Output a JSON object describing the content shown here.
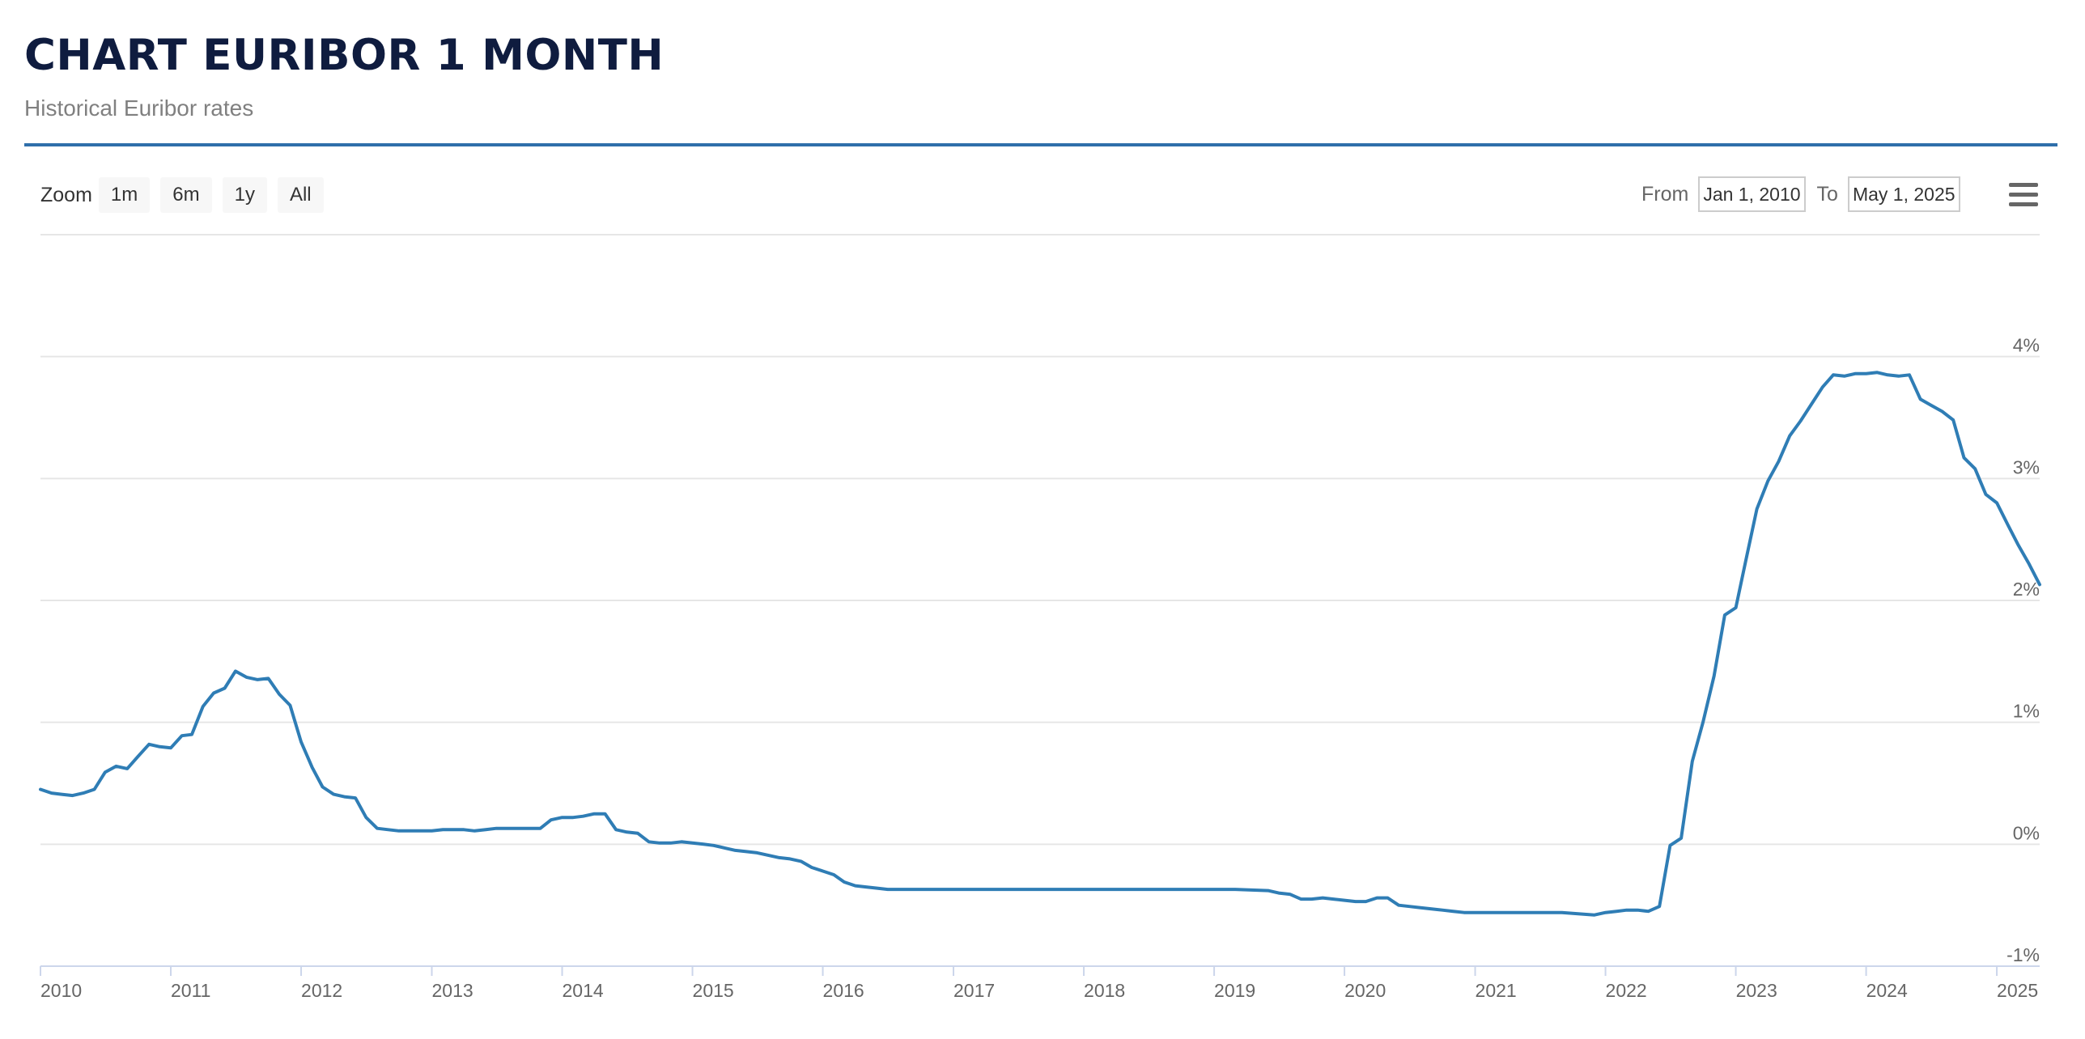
{
  "header": {
    "title": "CHART EURIBOR 1 MONTH",
    "subtitle": "Historical Euribor rates"
  },
  "toolbar": {
    "zoom_label": "Zoom",
    "zoom_buttons": [
      "1m",
      "6m",
      "1y",
      "All"
    ],
    "from_label": "From",
    "from_value": "Jan 1, 2010",
    "to_label": "To",
    "to_value": "May 1, 2025",
    "menu_icon": "hamburger-menu-icon"
  },
  "chart_data": {
    "type": "line",
    "title": "CHART EURIBOR 1 MONTH",
    "subtitle": "Historical Euribor rates",
    "xlabel": "",
    "ylabel": "",
    "x_range": [
      "2010-01-01",
      "2025-05-01"
    ],
    "ylim": [
      -1,
      5
    ],
    "y_ticks": [
      -1,
      0,
      1,
      2,
      3,
      4
    ],
    "y_tick_labels": [
      "-1%",
      "0%",
      "1%",
      "2%",
      "3%",
      "4%"
    ],
    "x_ticks": [
      "2010",
      "2011",
      "2012",
      "2013",
      "2014",
      "2015",
      "2016",
      "2017",
      "2018",
      "2019",
      "2020",
      "2021",
      "2022",
      "2023",
      "2024",
      "2025"
    ],
    "grid": true,
    "line_color": "#2f7db5",
    "series": [
      {
        "points": [
          [
            "2010-01-01",
            0.45
          ],
          [
            "2010-02-01",
            0.42
          ],
          [
            "2010-03-01",
            0.41
          ],
          [
            "2010-04-01",
            0.4
          ],
          [
            "2010-05-01",
            0.42
          ],
          [
            "2010-06-01",
            0.45
          ],
          [
            "2010-07-01",
            0.59
          ],
          [
            "2010-08-01",
            0.64
          ],
          [
            "2010-09-01",
            0.62
          ],
          [
            "2010-10-01",
            0.72
          ],
          [
            "2010-11-01",
            0.82
          ],
          [
            "2010-12-01",
            0.8
          ],
          [
            "2011-01-01",
            0.79
          ],
          [
            "2011-02-01",
            0.89
          ],
          [
            "2011-03-01",
            0.9
          ],
          [
            "2011-04-01",
            1.13
          ],
          [
            "2011-05-01",
            1.24
          ],
          [
            "2011-06-01",
            1.28
          ],
          [
            "2011-07-01",
            1.42
          ],
          [
            "2011-08-01",
            1.37
          ],
          [
            "2011-09-01",
            1.35
          ],
          [
            "2011-10-01",
            1.36
          ],
          [
            "2011-11-01",
            1.23
          ],
          [
            "2011-12-01",
            1.14
          ],
          [
            "2012-01-01",
            0.84
          ],
          [
            "2012-02-01",
            0.63
          ],
          [
            "2012-03-01",
            0.47
          ],
          [
            "2012-04-01",
            0.41
          ],
          [
            "2012-05-01",
            0.39
          ],
          [
            "2012-06-01",
            0.38
          ],
          [
            "2012-07-01",
            0.22
          ],
          [
            "2012-08-01",
            0.13
          ],
          [
            "2012-09-01",
            0.12
          ],
          [
            "2012-10-01",
            0.11
          ],
          [
            "2012-11-01",
            0.11
          ],
          [
            "2012-12-01",
            0.11
          ],
          [
            "2013-01-01",
            0.11
          ],
          [
            "2013-02-01",
            0.12
          ],
          [
            "2013-03-01",
            0.12
          ],
          [
            "2013-04-01",
            0.12
          ],
          [
            "2013-05-01",
            0.11
          ],
          [
            "2013-06-01",
            0.12
          ],
          [
            "2013-07-01",
            0.13
          ],
          [
            "2013-08-01",
            0.13
          ],
          [
            "2013-09-01",
            0.13
          ],
          [
            "2013-10-01",
            0.13
          ],
          [
            "2013-11-01",
            0.13
          ],
          [
            "2013-12-01",
            0.2
          ],
          [
            "2014-01-01",
            0.22
          ],
          [
            "2014-02-01",
            0.22
          ],
          [
            "2014-03-01",
            0.23
          ],
          [
            "2014-04-01",
            0.25
          ],
          [
            "2014-05-01",
            0.25
          ],
          [
            "2014-06-01",
            0.12
          ],
          [
            "2014-07-01",
            0.1
          ],
          [
            "2014-08-01",
            0.09
          ],
          [
            "2014-09-01",
            0.02
          ],
          [
            "2014-10-01",
            0.01
          ],
          [
            "2014-11-01",
            0.01
          ],
          [
            "2014-12-01",
            0.02
          ],
          [
            "2015-01-01",
            0.01
          ],
          [
            "2015-02-01",
            0.0
          ],
          [
            "2015-03-01",
            -0.01
          ],
          [
            "2015-04-01",
            -0.03
          ],
          [
            "2015-05-01",
            -0.05
          ],
          [
            "2015-06-01",
            -0.06
          ],
          [
            "2015-07-01",
            -0.07
          ],
          [
            "2015-08-01",
            -0.09
          ],
          [
            "2015-09-01",
            -0.11
          ],
          [
            "2015-10-01",
            -0.12
          ],
          [
            "2015-11-01",
            -0.14
          ],
          [
            "2015-12-01",
            -0.19
          ],
          [
            "2016-01-01",
            -0.22
          ],
          [
            "2016-02-01",
            -0.25
          ],
          [
            "2016-03-01",
            -0.31
          ],
          [
            "2016-04-01",
            -0.34
          ],
          [
            "2016-05-01",
            -0.35
          ],
          [
            "2016-06-01",
            -0.36
          ],
          [
            "2016-07-01",
            -0.37
          ],
          [
            "2016-09-01",
            -0.37
          ],
          [
            "2016-12-01",
            -0.37
          ],
          [
            "2017-06-01",
            -0.37
          ],
          [
            "2017-12-01",
            -0.37
          ],
          [
            "2018-06-01",
            -0.37
          ],
          [
            "2018-12-01",
            -0.37
          ],
          [
            "2019-03-01",
            -0.37
          ],
          [
            "2019-06-01",
            -0.38
          ],
          [
            "2019-07-01",
            -0.4
          ],
          [
            "2019-08-01",
            -0.41
          ],
          [
            "2019-09-01",
            -0.45
          ],
          [
            "2019-10-01",
            -0.45
          ],
          [
            "2019-11-01",
            -0.44
          ],
          [
            "2019-12-01",
            -0.45
          ],
          [
            "2020-01-01",
            -0.46
          ],
          [
            "2020-02-01",
            -0.47
          ],
          [
            "2020-03-01",
            -0.47
          ],
          [
            "2020-04-01",
            -0.44
          ],
          [
            "2020-05-01",
            -0.44
          ],
          [
            "2020-06-01",
            -0.5
          ],
          [
            "2020-07-01",
            -0.51
          ],
          [
            "2020-08-01",
            -0.52
          ],
          [
            "2020-09-01",
            -0.53
          ],
          [
            "2020-10-01",
            -0.54
          ],
          [
            "2020-11-01",
            -0.55
          ],
          [
            "2020-12-01",
            -0.56
          ],
          [
            "2021-03-01",
            -0.56
          ],
          [
            "2021-06-01",
            -0.56
          ],
          [
            "2021-09-01",
            -0.56
          ],
          [
            "2021-12-01",
            -0.58
          ],
          [
            "2022-01-01",
            -0.56
          ],
          [
            "2022-02-01",
            -0.55
          ],
          [
            "2022-03-01",
            -0.54
          ],
          [
            "2022-04-01",
            -0.54
          ],
          [
            "2022-05-01",
            -0.55
          ],
          [
            "2022-06-01",
            -0.51
          ],
          [
            "2022-07-01",
            -0.01
          ],
          [
            "2022-08-01",
            0.05
          ],
          [
            "2022-09-01",
            0.68
          ],
          [
            "2022-10-01",
            1.0
          ],
          [
            "2022-11-01",
            1.38
          ],
          [
            "2022-12-01",
            1.88
          ],
          [
            "2023-01-01",
            1.94
          ],
          [
            "2023-02-01",
            2.37
          ],
          [
            "2023-03-01",
            2.75
          ],
          [
            "2023-04-01",
            2.98
          ],
          [
            "2023-05-01",
            3.14
          ],
          [
            "2023-06-01",
            3.35
          ],
          [
            "2023-07-01",
            3.47
          ],
          [
            "2023-08-01",
            3.61
          ],
          [
            "2023-09-01",
            3.75
          ],
          [
            "2023-10-01",
            3.85
          ],
          [
            "2023-11-01",
            3.84
          ],
          [
            "2023-12-01",
            3.86
          ],
          [
            "2024-01-01",
            3.86
          ],
          [
            "2024-02-01",
            3.87
          ],
          [
            "2024-03-01",
            3.85
          ],
          [
            "2024-04-01",
            3.84
          ],
          [
            "2024-05-01",
            3.85
          ],
          [
            "2024-06-01",
            3.65
          ],
          [
            "2024-07-01",
            3.6
          ],
          [
            "2024-08-01",
            3.55
          ],
          [
            "2024-09-01",
            3.48
          ],
          [
            "2024-10-01",
            3.17
          ],
          [
            "2024-11-01",
            3.08
          ],
          [
            "2024-12-01",
            2.87
          ],
          [
            "2025-01-01",
            2.8
          ],
          [
            "2025-02-01",
            2.62
          ],
          [
            "2025-03-01",
            2.46
          ],
          [
            "2025-04-01",
            2.3
          ],
          [
            "2025-05-01",
            2.13
          ]
        ]
      }
    ]
  }
}
